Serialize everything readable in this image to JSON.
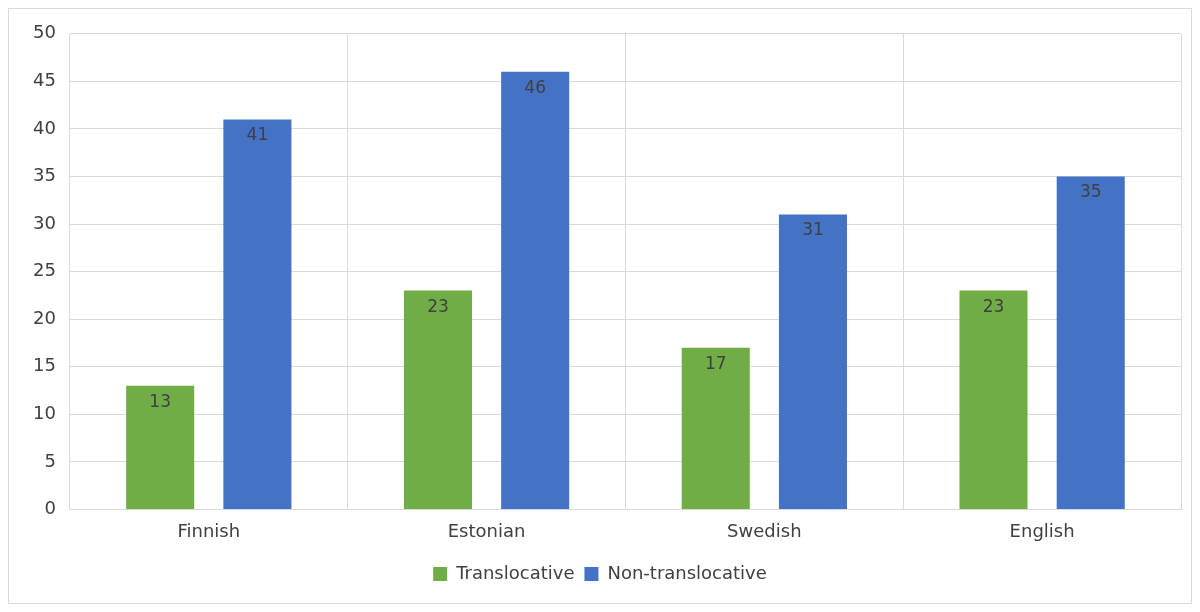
{
  "chart_data": {
    "type": "bar",
    "categories": [
      "Finnish",
      "Estonian",
      "Swedish",
      "English"
    ],
    "series": [
      {
        "name": "Translocative",
        "color": "#70ad47",
        "values": [
          13,
          23,
          17,
          23
        ]
      },
      {
        "name": "Non-translocative",
        "color": "#4472c4",
        "values": [
          41,
          46,
          31,
          35
        ]
      }
    ],
    "ylim": [
      0,
      50
    ],
    "yticks": [
      0,
      5,
      10,
      15,
      20,
      25,
      30,
      35,
      40,
      45,
      50
    ],
    "grid": true,
    "legend": "bottom",
    "data_labels": true
  }
}
